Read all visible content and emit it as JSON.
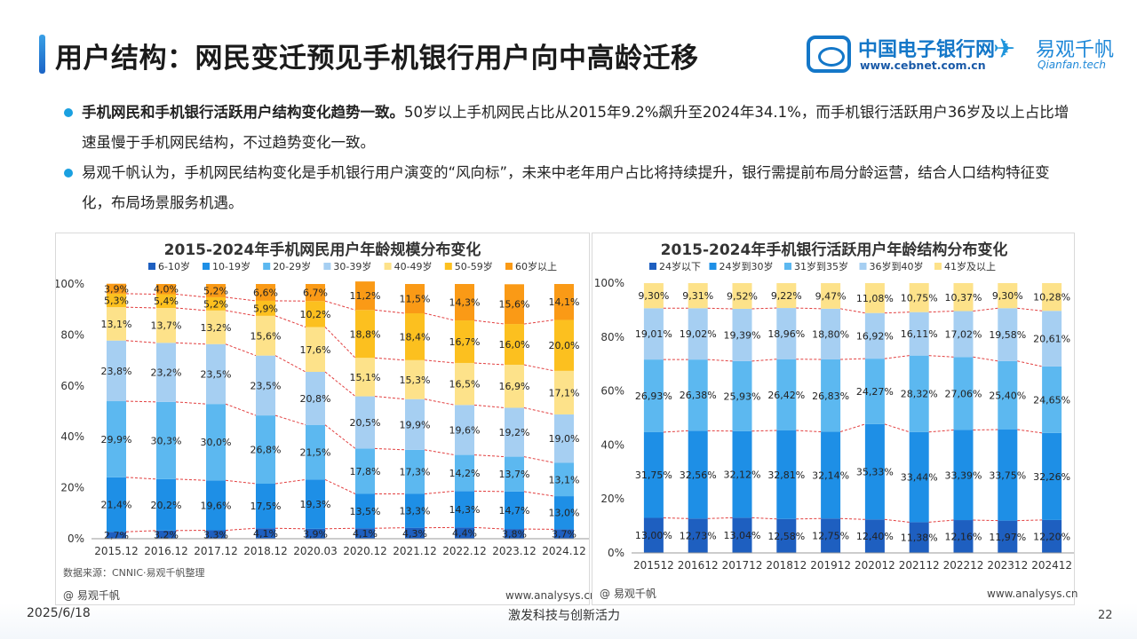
{
  "title": "用户结构：网民变迁预见手机银行用户向中高龄迁移",
  "logo_cebnet": {
    "cn": "中国电子银行网",
    "url": "www.cebnet.com.cn"
  },
  "logo_qianfan": {
    "cn": "易观千帆",
    "en": "Qianfan.tech"
  },
  "bullets": [
    {
      "bold": "手机网民和手机银行活跃用户结构变化趋势一致。",
      "text": "50岁以上手机网民占比从2015年9.2%飙升至2024年34.1%，而手机银行活跃用户36岁及以上占比增速虽慢于手机网民结构，不过趋势变化一致。"
    },
    {
      "bold": "",
      "text": "易观千帆认为，手机网民结构变化是手机银行用户演变的“风向标”，未来中老年用户占比将持续提升，银行需提前布局分龄运营，结合人口结构特征变化，布局场景服务机遇。"
    }
  ],
  "left_footer": {
    "source": "数据来源：CNNIC·易观千帆整理",
    "brand": "@ 易观千帆",
    "url": "www.analysys.cn"
  },
  "right_footer": {
    "brand": "@ 易观千帆",
    "url": "www.analysys.cn"
  },
  "date": "2025/6/18",
  "slogan": "激发科技与创新活力",
  "page_number": "22",
  "chart_data": [
    {
      "type": "bar",
      "stacked": true,
      "percent": true,
      "title": "2015-2024年手机网民用户年龄规模分布变化",
      "categories": [
        "2015.12",
        "2016.12",
        "2017.12",
        "2018.12",
        "2020.03",
        "2020.12",
        "2021.12",
        "2022.12",
        "2023.12",
        "2024.12"
      ],
      "y_ticks": [
        "0%",
        "20%",
        "40%",
        "60%",
        "80%",
        "100%"
      ],
      "ylim": [
        0,
        100
      ],
      "legend_position": "top",
      "series": [
        {
          "name": "6-10岁",
          "color": "#1e5fc0",
          "values": [
            2.7,
            3.2,
            3.3,
            4.1,
            3.9,
            4.1,
            4.3,
            4.4,
            3.8,
            3.7
          ],
          "labels": [
            "2,7%",
            "3,2%",
            "3,3%",
            "4,1%",
            "3,9%",
            "4,1%",
            "4,3%",
            "4,4%",
            "3,8%",
            "3,7%"
          ]
        },
        {
          "name": "10-19岁",
          "color": "#1e8fe6",
          "values": [
            21.4,
            20.2,
            19.6,
            17.5,
            19.3,
            13.5,
            13.3,
            14.3,
            14.7,
            13.0
          ],
          "labels": [
            "21,4%",
            "20,2%",
            "19,6%",
            "17,5%",
            "19,3%",
            "13,5%",
            "13,3%",
            "14,3%",
            "14,7%",
            "13,0%"
          ]
        },
        {
          "name": "20-29岁",
          "color": "#5cb8f0",
          "values": [
            29.9,
            30.3,
            30.0,
            26.8,
            21.5,
            17.8,
            17.3,
            14.2,
            13.7,
            13.1
          ],
          "labels": [
            "29,9%",
            "30,3%",
            "30,0%",
            "26,8%",
            "21,5%",
            "17,8%",
            "17,3%",
            "14,2%",
            "13,7%",
            "13,1%"
          ]
        },
        {
          "name": "30-39岁",
          "color": "#a6cff2",
          "values": [
            23.8,
            23.2,
            23.5,
            23.5,
            20.8,
            20.5,
            19.9,
            19.6,
            19.2,
            19.0
          ],
          "labels": [
            "23,8%",
            "23,2%",
            "23,5%",
            "23,5%",
            "20,8%",
            "20,5%",
            "19,9%",
            "19,6%",
            "19,2%",
            "19,0%"
          ]
        },
        {
          "name": "40-49岁",
          "color": "#fde28a",
          "values": [
            13.1,
            13.7,
            13.2,
            15.6,
            17.6,
            15.1,
            15.3,
            16.5,
            16.9,
            17.1
          ],
          "labels": [
            "13,1%",
            "13,7%",
            "13,2%",
            "15,6%",
            "17,6%",
            "15,1%",
            "15,3%",
            "16,5%",
            "16,9%",
            "17,1%"
          ]
        },
        {
          "name": "50-59岁",
          "color": "#fcc01f",
          "values": [
            5.3,
            5.4,
            5.2,
            5.9,
            10.2,
            18.8,
            18.4,
            16.7,
            16.0,
            20.0
          ],
          "labels": [
            "5,3%",
            "5,4%",
            "5,2%",
            "5,9%",
            "10,2%",
            "18,8%",
            "18,4%",
            "16,7%",
            "16,0%",
            "20,0%"
          ]
        },
        {
          "name": "60岁以上",
          "color": "#fa9a16",
          "values": [
            3.9,
            4.0,
            5.2,
            6.6,
            6.7,
            11.2,
            11.5,
            14.3,
            15.6,
            14.1
          ],
          "labels": [
            "3,9%",
            "4,0%",
            "5,2%",
            "6,6%",
            "6,7%",
            "11,2%",
            "11,5%",
            "14,3%",
            "15,6%",
            "14,1%"
          ]
        }
      ]
    },
    {
      "type": "bar",
      "stacked": true,
      "percent": true,
      "title": "2015-2024年手机银行活跃用户年龄结构分布变化",
      "categories": [
        "201512",
        "201612",
        "201712",
        "201812",
        "201912",
        "202012",
        "202112",
        "202212",
        "202312",
        "202412"
      ],
      "y_ticks": [
        "0%",
        "20%",
        "40%",
        "60%",
        "80%",
        "100%"
      ],
      "ylim": [
        0,
        100
      ],
      "legend_position": "top",
      "series": [
        {
          "name": "24岁以下",
          "color": "#1e5fc0",
          "values": [
            13.0,
            12.73,
            13.04,
            12.58,
            12.75,
            12.4,
            11.38,
            12.16,
            11.97,
            12.2
          ],
          "labels": [
            "13,00%",
            "12,73%",
            "13,04%",
            "12,58%",
            "12,75%",
            "12,40%",
            "11,38%",
            "12,16%",
            "11,97%",
            "12,20%"
          ]
        },
        {
          "name": "24岁到30岁",
          "color": "#1e8fe6",
          "values": [
            31.75,
            32.56,
            32.12,
            32.81,
            32.14,
            35.33,
            33.44,
            33.39,
            33.75,
            32.26
          ],
          "labels": [
            "31,75%",
            "32,56%",
            "32,12%",
            "32,81%",
            "32,14%",
            "35,33%",
            "33,44%",
            "33,39%",
            "33,75%",
            "32,26%"
          ]
        },
        {
          "name": "31岁到35岁",
          "color": "#5cb8f0",
          "values": [
            26.93,
            26.38,
            25.93,
            26.42,
            26.83,
            24.27,
            28.32,
            27.06,
            25.4,
            24.65
          ],
          "labels": [
            "26,93%",
            "26,38%",
            "25,93%",
            "26,42%",
            "26,83%",
            "24,27%",
            "28,32%",
            "27,06%",
            "25,40%",
            "24,65%"
          ]
        },
        {
          "name": "36岁到40岁",
          "color": "#a6cff2",
          "values": [
            19.01,
            19.02,
            19.39,
            18.96,
            18.8,
            16.92,
            16.11,
            17.02,
            19.58,
            20.61
          ],
          "labels": [
            "19,01%",
            "19,02%",
            "19,39%",
            "18,96%",
            "18,80%",
            "16,92%",
            "16,11%",
            "17,02%",
            "19,58%",
            "20,61%"
          ]
        },
        {
          "name": "41岁及以上",
          "color": "#fde28a",
          "values": [
            9.3,
            9.31,
            9.52,
            9.22,
            9.47,
            11.08,
            10.75,
            10.37,
            9.3,
            10.28
          ],
          "labels": [
            "9,30%",
            "9,31%",
            "9,52%",
            "9,22%",
            "9,47%",
            "11,08%",
            "10,75%",
            "10,37%",
            "9,30%",
            "10,28%"
          ]
        }
      ]
    }
  ]
}
